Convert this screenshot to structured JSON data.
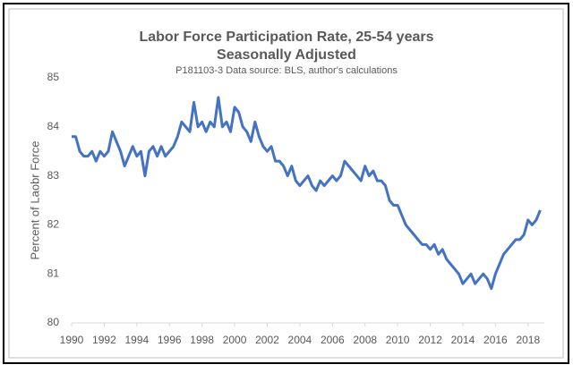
{
  "chart_data": {
    "type": "line",
    "title": "Labor Force Participation Rate, 25-54 years",
    "subtitle": "Seasonally Adjusted",
    "note": "P181103-3 Data source: BLS, author's calculations",
    "y_label": "Percent of Laobr Force",
    "xlim": [
      1990,
      2019
    ],
    "xticks": [
      1990,
      1992,
      1994,
      1996,
      1998,
      2000,
      2002,
      2004,
      2006,
      2008,
      2010,
      2012,
      2014,
      2016,
      2018
    ],
    "ylim": [
      80,
      85
    ],
    "yticks": [
      80,
      81,
      82,
      83,
      84,
      85
    ],
    "grid": false,
    "series": [
      {
        "name": "Labor Force Participation Rate, 25-54 years",
        "color": "#4472c4",
        "x": [
          1990,
          1990.25,
          1990.5,
          1990.75,
          1991,
          1991.25,
          1991.5,
          1991.75,
          1992,
          1992.25,
          1992.5,
          1992.75,
          1993,
          1993.25,
          1993.5,
          1993.75,
          1994,
          1994.25,
          1994.5,
          1994.75,
          1995,
          1995.25,
          1995.5,
          1995.75,
          1996,
          1996.25,
          1996.5,
          1996.75,
          1997,
          1997.25,
          1997.5,
          1997.75,
          1998,
          1998.25,
          1998.5,
          1998.75,
          1999,
          1999.25,
          1999.5,
          1999.75,
          2000,
          2000.25,
          2000.5,
          2000.75,
          2001,
          2001.25,
          2001.5,
          2001.75,
          2002,
          2002.25,
          2002.5,
          2002.75,
          2003,
          2003.25,
          2003.5,
          2003.75,
          2004,
          2004.25,
          2004.5,
          2004.75,
          2005,
          2005.25,
          2005.5,
          2005.75,
          2006,
          2006.25,
          2006.5,
          2006.75,
          2007,
          2007.25,
          2007.5,
          2007.75,
          2008,
          2008.25,
          2008.5,
          2008.75,
          2009,
          2009.25,
          2009.5,
          2009.75,
          2010,
          2010.25,
          2010.5,
          2010.75,
          2011,
          2011.25,
          2011.5,
          2011.75,
          2012,
          2012.25,
          2012.5,
          2012.75,
          2013,
          2013.25,
          2013.5,
          2013.75,
          2014,
          2014.25,
          2014.5,
          2014.75,
          2015,
          2015.25,
          2015.5,
          2015.75,
          2016,
          2016.25,
          2016.5,
          2016.75,
          2017,
          2017.25,
          2017.5,
          2017.75,
          2018,
          2018.25,
          2018.5,
          2018.75
        ],
        "values": [
          83.8,
          83.8,
          83.5,
          83.4,
          83.4,
          83.5,
          83.3,
          83.5,
          83.4,
          83.5,
          83.9,
          83.7,
          83.5,
          83.2,
          83.4,
          83.6,
          83.4,
          83.5,
          83.0,
          83.5,
          83.6,
          83.4,
          83.6,
          83.4,
          83.5,
          83.6,
          83.8,
          84.1,
          84.0,
          83.9,
          84.5,
          84.0,
          84.1,
          83.9,
          84.1,
          84.0,
          84.6,
          84.0,
          84.1,
          83.9,
          84.4,
          84.3,
          84.0,
          83.9,
          83.7,
          84.1,
          83.8,
          83.6,
          83.5,
          83.6,
          83.3,
          83.3,
          83.2,
          83.0,
          83.2,
          82.9,
          82.8,
          82.9,
          83.0,
          82.8,
          82.7,
          82.9,
          82.8,
          82.9,
          83.0,
          82.9,
          83.0,
          83.3,
          83.2,
          83.1,
          83.0,
          82.9,
          83.2,
          83.0,
          83.1,
          82.9,
          82.9,
          82.8,
          82.5,
          82.4,
          82.4,
          82.2,
          82.0,
          81.9,
          81.8,
          81.7,
          81.6,
          81.6,
          81.5,
          81.6,
          81.4,
          81.5,
          81.3,
          81.2,
          81.1,
          81.0,
          80.8,
          80.9,
          81.0,
          80.8,
          80.9,
          81.0,
          80.9,
          80.7,
          81.0,
          81.2,
          81.4,
          81.5,
          81.6,
          81.7,
          81.7,
          81.8,
          82.1,
          82.0,
          82.1,
          82.3
        ]
      }
    ]
  }
}
